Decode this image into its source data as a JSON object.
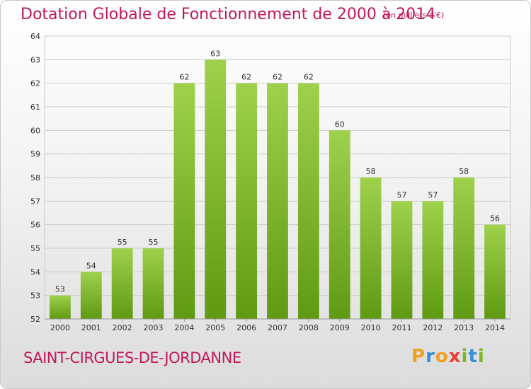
{
  "chart_data": {
    "type": "bar",
    "title": "Dotation Globale de Fonctionnement de 2000 à 2014",
    "subtitle": "(en milliers d'€)",
    "categories": [
      "2000",
      "2001",
      "2002",
      "2003",
      "2004",
      "2005",
      "2006",
      "2007",
      "2008",
      "2009",
      "2010",
      "2011",
      "2012",
      "2013",
      "2014"
    ],
    "values": [
      53,
      54,
      55,
      55,
      62,
      63,
      62,
      62,
      62,
      60,
      58,
      57,
      57,
      58,
      56
    ],
    "ylim": [
      52,
      64
    ],
    "yticks": [
      52,
      53,
      54,
      55,
      56,
      57,
      58,
      59,
      60,
      61,
      62,
      63,
      64
    ],
    "grid": true,
    "legend": "none",
    "bar_color_top": "#9fd14c",
    "bar_color_bottom": "#5f9a12"
  },
  "commune_name": "SAINT-CIRGUES-DE-JORDANNE",
  "logo": {
    "letters": [
      "P",
      "r",
      "o",
      "x",
      "i",
      "t",
      "i"
    ],
    "colors": [
      "#f0a020",
      "#3a8fd8",
      "#f0a020",
      "#e84030",
      "#7ab828",
      "#3a8fd8",
      "#7ab828"
    ]
  },
  "colors": {
    "accent": "#c2185b",
    "grid": "#cccccc",
    "axis_text": "#333333"
  }
}
